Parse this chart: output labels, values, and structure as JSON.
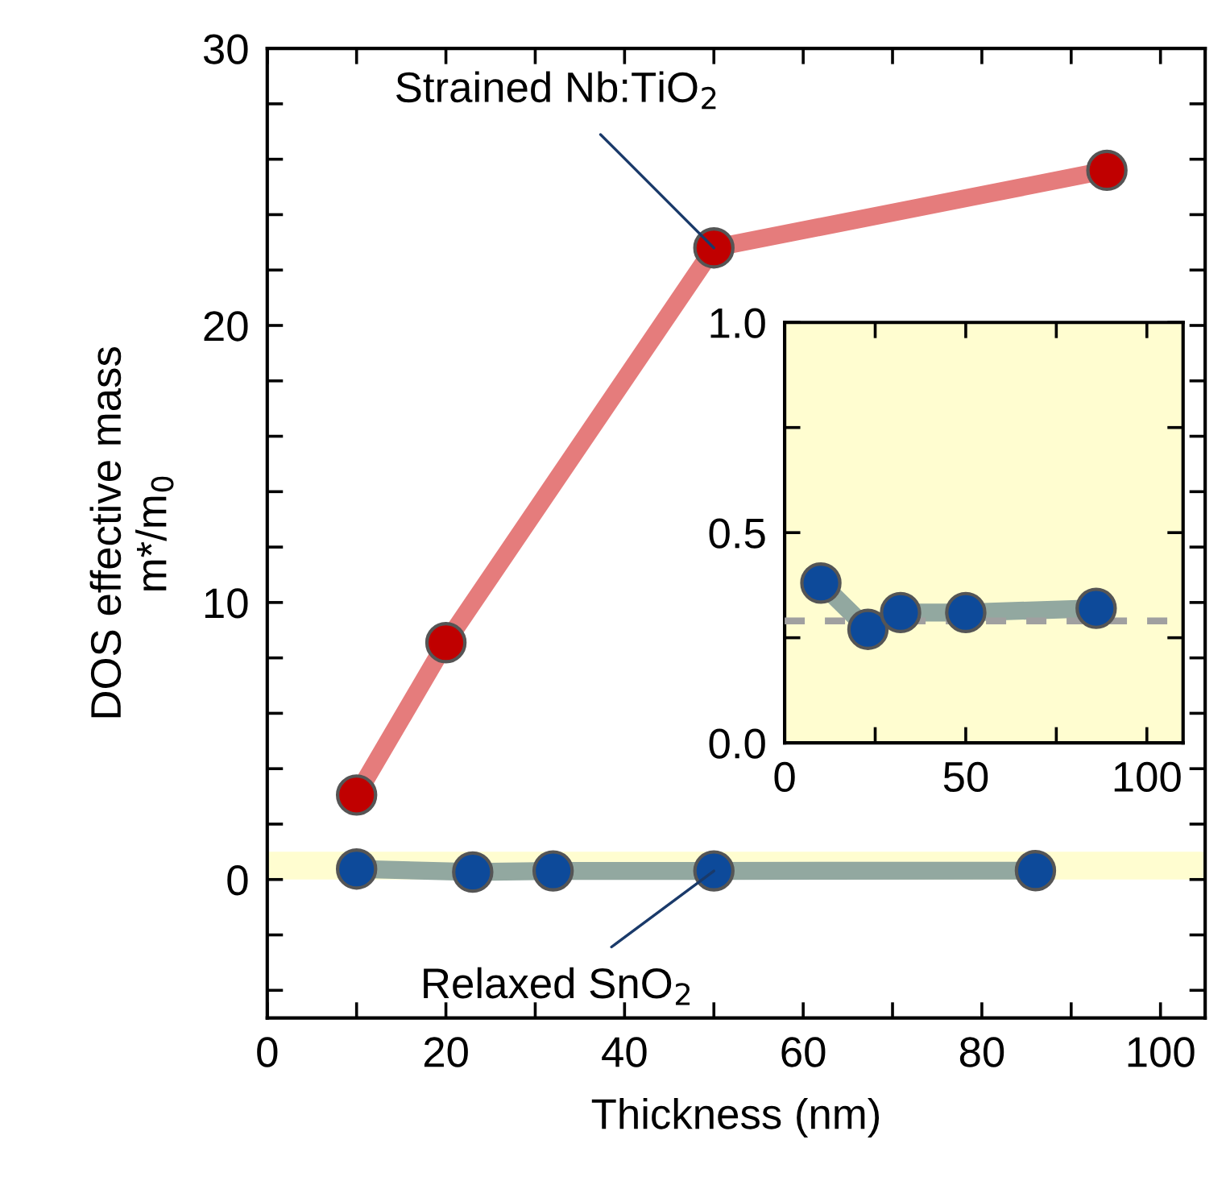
{
  "chart_data": [
    {
      "type": "line",
      "xlabel": "Thickness (nm)",
      "ylabel": "DOS effective mass\nm*/m$_{0}$",
      "xlim": [
        0,
        105
      ],
      "xticks": [
        0,
        {
          "value": 10,
          "label": null
        },
        20,
        {
          "value": 30,
          "label": null
        },
        40,
        {
          "value": 50,
          "label": null
        },
        60,
        {
          "value": 70,
          "label": null
        },
        80,
        {
          "value": 90,
          "label": null
        },
        100
      ],
      "ylim": [
        -5,
        30
      ],
      "yticks": [
        {
          "value": -4,
          "label": null
        },
        {
          "value": -2,
          "label": null
        },
        0,
        {
          "value": 2,
          "label": null
        },
        {
          "value": 4,
          "label": null
        },
        {
          "value": 6,
          "label": null
        },
        {
          "value": 8,
          "label": null
        },
        10,
        {
          "value": 12,
          "label": null
        },
        {
          "value": 14,
          "label": null
        },
        {
          "value": 16,
          "label": null
        },
        {
          "value": 18,
          "label": null
        },
        20,
        {
          "value": 22,
          "label": null
        },
        {
          "value": 24,
          "label": null
        },
        {
          "value": 26,
          "label": null
        },
        {
          "value": 28,
          "label": null
        },
        30
      ],
      "marker": "circle",
      "line_style": "solid",
      "grid": false,
      "legend": false,
      "bands": [
        {
          "axis": "y",
          "from": 0,
          "to": 1,
          "label": null,
          "color": "#fffdd0"
        }
      ],
      "series": [
        {
          "color": "#e57c7c",
          "colors": [
            "#c00000",
            "#c00000",
            "#c00000",
            "#c00000"
          ],
          "x": [
            10,
            20,
            50,
            94
          ],
          "values": [
            3.05,
            8.55,
            22.8,
            25.6
          ]
        },
        {
          "color": "#92a8a0",
          "colors": [
            "#0d4a9a",
            "#0d4a9a",
            "#0d4a9a",
            "#0d4a9a",
            "#0d4a9a"
          ],
          "x": [
            10,
            23,
            32,
            50,
            86
          ],
          "values": [
            0.38,
            0.27,
            0.31,
            0.31,
            0.32
          ]
        }
      ],
      "annotations": [
        {
          "text": "Strained Nb:TiO$_{2}$",
          "x": 50,
          "y": 22.8
        },
        {
          "text": "Relaxed SnO$_{2}$",
          "x": 50,
          "y": 0.31
        }
      ]
    },
    {
      "type": "line",
      "xlim": [
        0,
        110
      ],
      "xticks": [
        0,
        {
          "value": 25,
          "label": null
        },
        50,
        {
          "value": 75,
          "label": null
        },
        100
      ],
      "ylim": [
        0,
        1
      ],
      "yticks": [
        {
          "value": 0,
          "label": "0.0"
        },
        {
          "value": 0.25,
          "label": null
        },
        0.5,
        {
          "value": 0.75,
          "label": null
        },
        {
          "value": 1,
          "label": "1.0"
        }
      ],
      "marker": "circle",
      "line_style": "solid",
      "grid": false,
      "legend": false,
      "bands": [
        {
          "axis": "y",
          "from": 0,
          "to": 1,
          "label": null,
          "color": "#fffdd0"
        }
      ],
      "ref_lines": [
        {
          "axis": "y",
          "value": 0.29,
          "label": null,
          "color": "#a0a0a0",
          "line_style": "dashed"
        }
      ],
      "series": [
        {
          "color": "#92a8a0",
          "colors": [
            "#0d4a9a",
            "#0d4a9a",
            "#0d4a9a",
            "#0d4a9a",
            "#0d4a9a"
          ],
          "x": [
            10,
            23,
            32,
            50,
            86
          ],
          "values": [
            0.38,
            0.27,
            0.31,
            0.31,
            0.32
          ]
        }
      ]
    }
  ]
}
